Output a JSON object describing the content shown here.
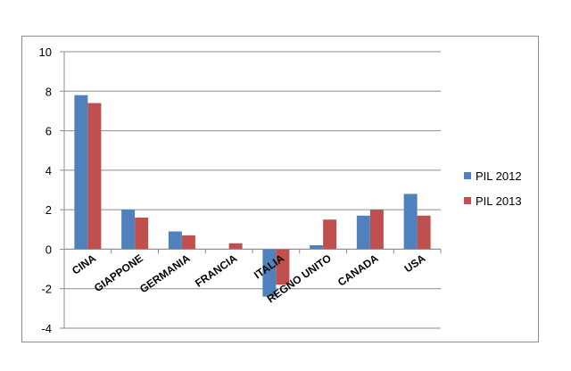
{
  "chart_data": {
    "type": "bar",
    "title": "",
    "xlabel": "",
    "ylabel": "",
    "categories": [
      "CINA",
      "GIAPPONE",
      "GERMANIA",
      "FRANCIA",
      "ITALIA",
      "REGNO UNITO",
      "CANADA",
      "USA"
    ],
    "series": [
      {
        "name": "PIL 2012",
        "color": "#4f81bd",
        "values": [
          7.8,
          2.0,
          0.9,
          0.0,
          -2.4,
          0.2,
          1.7,
          2.8
        ]
      },
      {
        "name": "PIL 2013",
        "color": "#c0504d",
        "values": [
          7.4,
          1.6,
          0.7,
          0.3,
          -1.8,
          1.5,
          2.0,
          1.7
        ]
      }
    ],
    "ylim": [
      -4,
      10
    ],
    "yticks": [
      -4,
      -2,
      0,
      2,
      4,
      6,
      8,
      10
    ],
    "grid": true,
    "legend_position": "right"
  }
}
